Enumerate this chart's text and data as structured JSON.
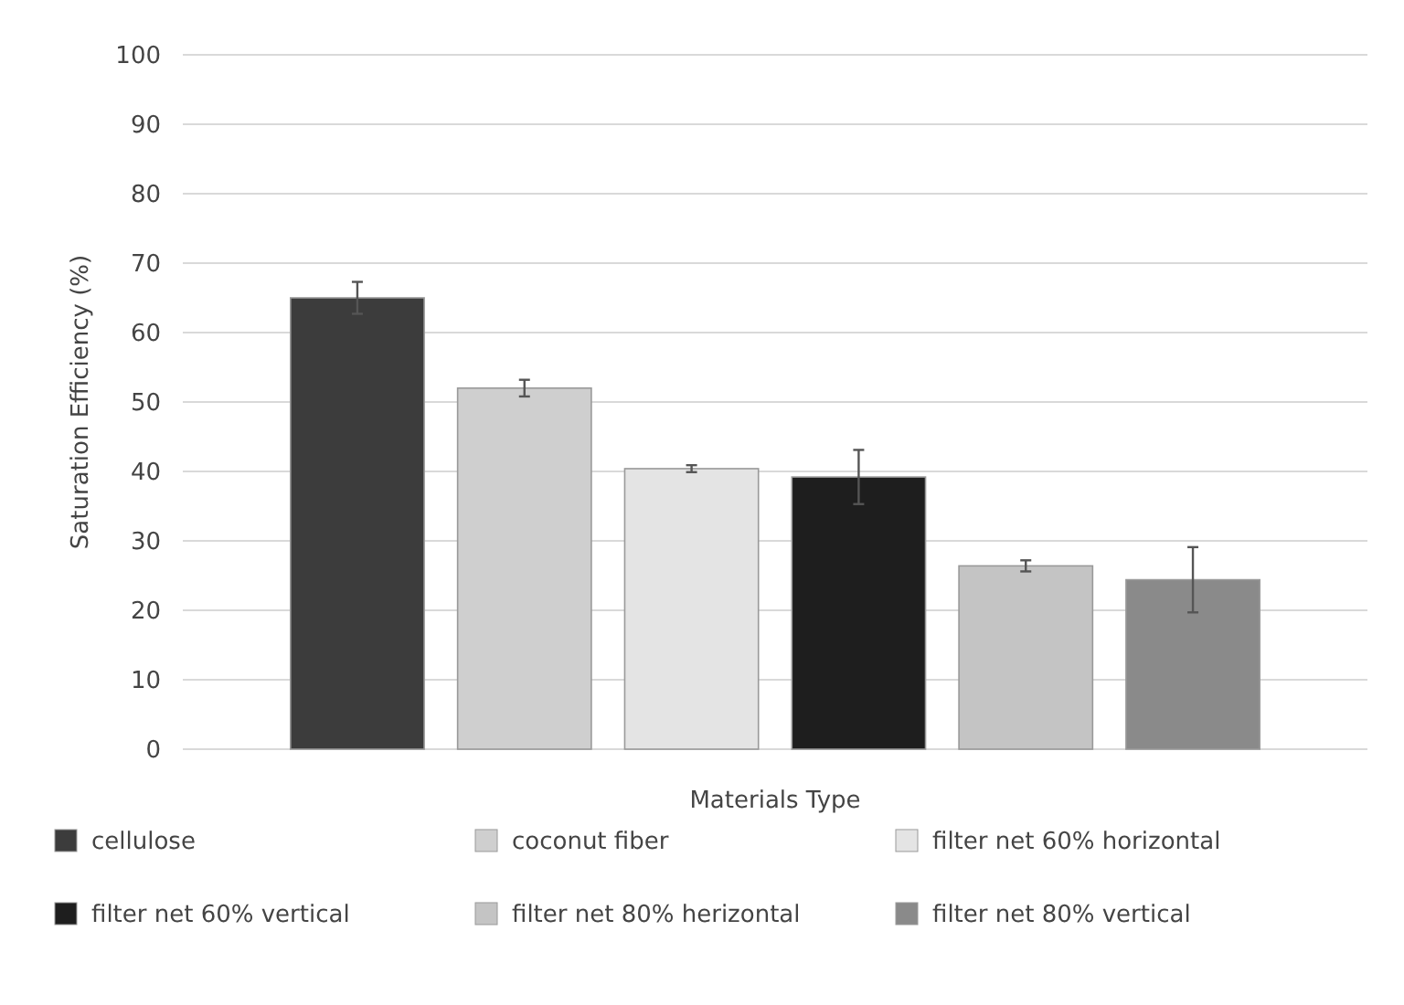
{
  "chart_data": {
    "type": "bar",
    "xlabel": "Materials Type",
    "ylabel": "Saturation Efficiency (%)",
    "categories": [
      null
    ],
    "ylim": [
      0,
      100
    ],
    "yticks": [
      0,
      10,
      20,
      30,
      40,
      50,
      60,
      70,
      80,
      90,
      100
    ],
    "grid": "y",
    "legend": "bottom",
    "series": [
      {
        "name": "cellulose",
        "color": "#3c3c3c",
        "values": [
          65
        ],
        "errors": [
          2.3
        ]
      },
      {
        "name": "coconut fiber",
        "color": "#cfcfcf",
        "values": [
          52
        ],
        "errors": [
          1.2
        ]
      },
      {
        "name": "filter net 60% horizontal",
        "color": "#e4e4e4",
        "values": [
          40.4
        ],
        "errors": [
          0.5
        ]
      },
      {
        "name": "filter net 60% vertical",
        "color": "#1e1e1e",
        "values": [
          39.2
        ],
        "errors": [
          3.9
        ]
      },
      {
        "name": "filter net 80% herizontal",
        "color": "#c4c4c4",
        "values": [
          26.4
        ],
        "errors": [
          0.8
        ]
      },
      {
        "name": "filter net 80% vertical",
        "color": "#8a8a8a",
        "values": [
          24.4
        ],
        "errors": [
          4.7
        ]
      }
    ]
  }
}
